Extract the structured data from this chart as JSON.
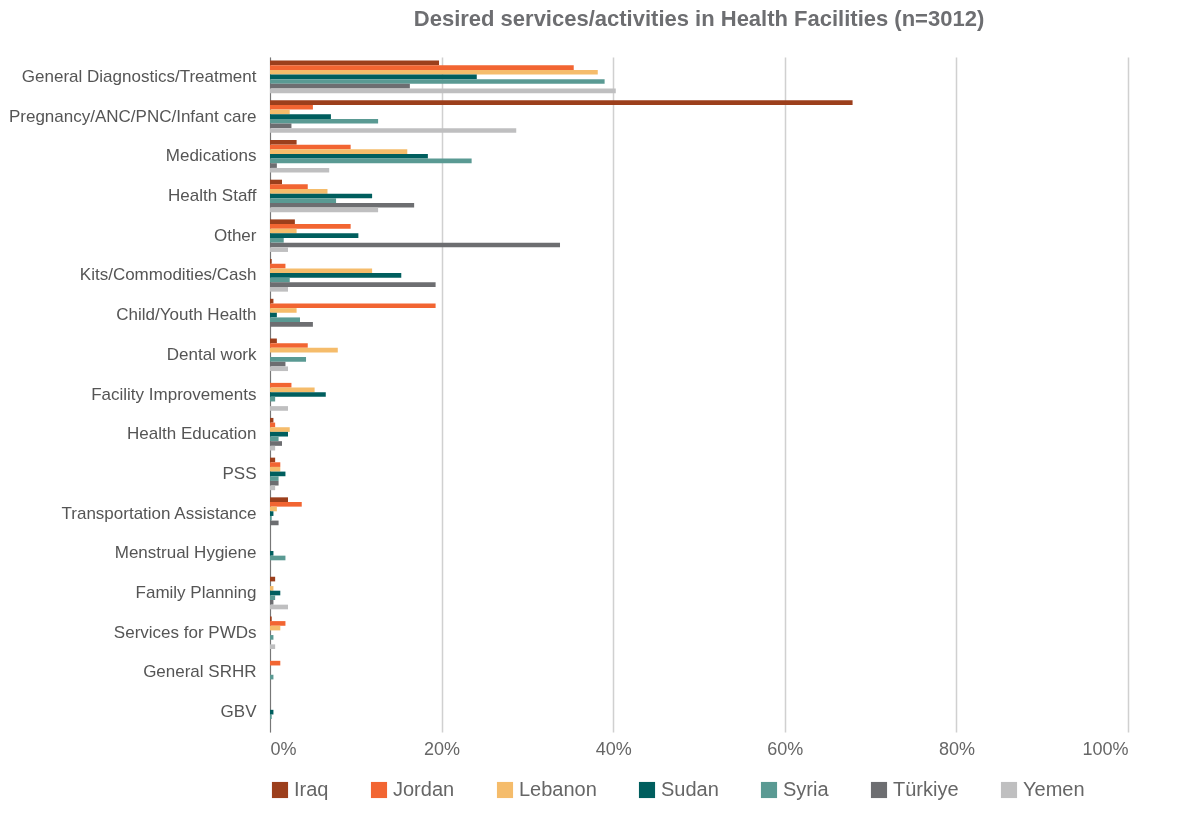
{
  "chart_data": {
    "type": "bar",
    "orientation": "horizontal",
    "title": "Desired services/activities in Health Facilities (n=3012)",
    "categories": [
      "General Diagnostics/Treatment",
      "Pregnancy/ANC/PNC/Infant care",
      "Medications",
      "Health Staff",
      "Other",
      "Kits/Commodities/Cash",
      "Child/Youth Health",
      "Dental work",
      "Facility Improvements",
      "Health Education",
      "PSS",
      "Transportation Assistance",
      "Menstrual Hygiene",
      "Family Planning",
      "Services for PWDs",
      "General SRHR",
      "GBV"
    ],
    "series": [
      {
        "name": "Iraq",
        "color": "#9c3f1c",
        "values": [
          19.7,
          67.9,
          3.1,
          1.4,
          2.9,
          0.2,
          0.4,
          0.8,
          0,
          0.4,
          0.6,
          2.1,
          0,
          0.6,
          0.2,
          0,
          0
        ]
      },
      {
        "name": "Jordan",
        "color": "#f26532",
        "values": [
          35.4,
          5.0,
          9.4,
          4.4,
          9.4,
          1.8,
          19.3,
          4.4,
          2.5,
          0.6,
          1.2,
          3.7,
          0,
          0,
          1.8,
          1.2,
          0
        ]
      },
      {
        "name": "Lebanon",
        "color": "#f5bc6b",
        "values": [
          38.2,
          2.3,
          16.0,
          6.7,
          3.1,
          11.9,
          3.1,
          7.9,
          5.2,
          2.3,
          1.2,
          0.8,
          0,
          0.4,
          1.2,
          0,
          0
        ]
      },
      {
        "name": "Sudan",
        "color": "#005e5e",
        "values": [
          24.1,
          7.1,
          18.4,
          11.9,
          10.3,
          15.3,
          0.8,
          0,
          6.5,
          2.1,
          1.8,
          0.4,
          0.4,
          1.2,
          0,
          0,
          0.4
        ]
      },
      {
        "name": "Syria",
        "color": "#5a9a93",
        "values": [
          39.0,
          12.6,
          23.5,
          7.7,
          1.6,
          2.3,
          3.5,
          4.2,
          0.6,
          1.0,
          1.0,
          0.2,
          1.8,
          0.6,
          0.4,
          0.4,
          0.2
        ]
      },
      {
        "name": "Türkiye",
        "color": "#6d6e71",
        "values": [
          16.3,
          2.5,
          0.8,
          16.8,
          33.8,
          19.3,
          5.0,
          1.8,
          0,
          1.4,
          1.0,
          1.0,
          0,
          0.4,
          0,
          0,
          0
        ]
      },
      {
        "name": "Yemen",
        "color": "#bfbfc0",
        "values": [
          40.3,
          28.7,
          6.9,
          12.6,
          2.1,
          2.1,
          0,
          2.1,
          2.1,
          0.6,
          0.6,
          0,
          0,
          2.1,
          0.6,
          0,
          0
        ]
      }
    ],
    "xlim": [
      0,
      100
    ],
    "xticks": [
      {
        "value": 0,
        "label": "0%"
      },
      {
        "value": 20,
        "label": "20%"
      },
      {
        "value": 40,
        "label": "40%"
      },
      {
        "value": 60,
        "label": "60%"
      },
      {
        "value": 80,
        "label": "80%"
      },
      {
        "value": 100,
        "label": "100%"
      }
    ],
    "grid": "x",
    "legend": "bottom"
  }
}
